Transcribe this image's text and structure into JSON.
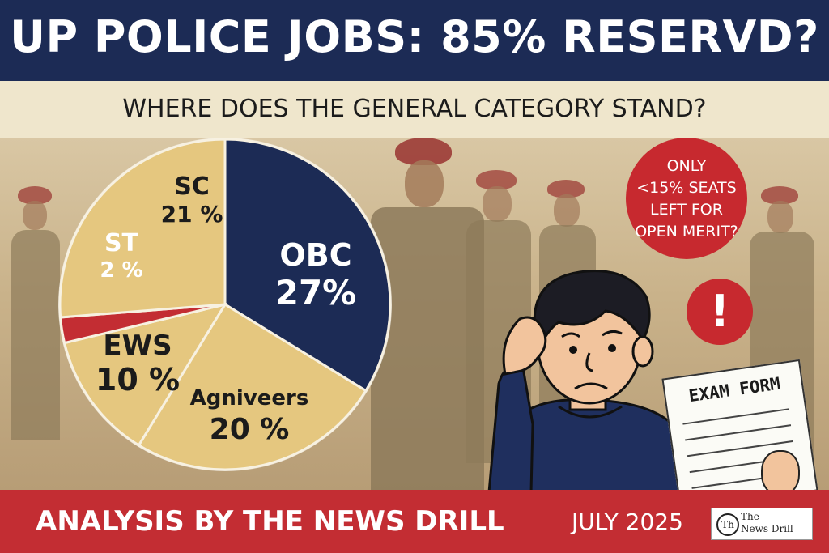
{
  "header": {
    "title": "UP POLICE JOBS: 85% RESERVD?",
    "subtitle": "WHERE DOES THE GENERAL CATEGORY STAND?"
  },
  "callout": {
    "text_lines": [
      "ONLY",
      "<15% SEATS",
      "LEFT FOR",
      "OPEN MERIT?"
    ],
    "alert_symbol": "!"
  },
  "exam_form": {
    "title": "EXAM FORM"
  },
  "footer": {
    "left": "ANALYSIS BY THE NEWS DRILL",
    "date": "JULY 2025",
    "logo_mark": "Th",
    "logo_text_line1": "The",
    "logo_text_line2": "News Drill"
  },
  "colors": {
    "navy": "#1c2b55",
    "red": "#c32d33",
    "gold": "#e5c77f",
    "cream": "#efe6cc"
  },
  "chart_data": {
    "type": "pie",
    "unit": "%",
    "slices": [
      {
        "label": "OBC",
        "value": 27,
        "display": "27%",
        "color": "#1c2b55",
        "text_color": "#ffffff"
      },
      {
        "label": "Agniveers",
        "value": 20,
        "display": "20 %",
        "color": "#e5c77f",
        "text_color": "#1b1b1b"
      },
      {
        "label": "EWS",
        "value": 10,
        "display": "10 %",
        "color": "#e5c77f",
        "text_color": "#1b1b1b"
      },
      {
        "label": "ST",
        "value": 2,
        "display": "2 %",
        "color": "#c32d33",
        "text_color": "#ffffff"
      },
      {
        "label": "SC",
        "value": 21,
        "display": "21 %",
        "color": "#e5c77f",
        "text_color": "#1b1b1b"
      }
    ]
  }
}
